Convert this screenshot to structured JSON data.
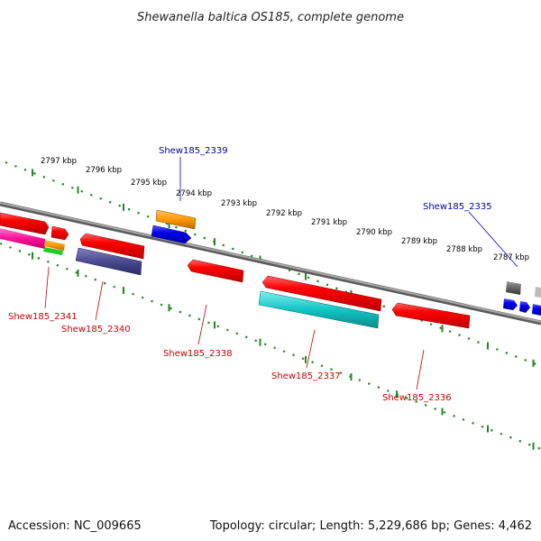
{
  "title": "Shewanella baltica OS185, complete genome",
  "footer": {
    "accession": "Accession: NC_009665",
    "summary": "Topology: circular; Length: 5,229,686 bp; Genes: 4,462"
  },
  "scale": {
    "ticks": [
      "2797 kbp",
      "2796 kbp",
      "2795 kbp",
      "2794 kbp",
      "2793 kbp",
      "2792 kbp",
      "2791 kbp",
      "2790 kbp",
      "2789 kbp",
      "2788 kbp",
      "2787 kbp"
    ]
  },
  "genes": {
    "upper": [
      {
        "name": "Shew185_2339",
        "color": "#0000aa"
      },
      {
        "name": "Shew185_2335",
        "color": "#0000aa"
      }
    ],
    "lower": [
      {
        "name": "Shew185_2341",
        "color": "#cc0000"
      },
      {
        "name": "Shew185_2340",
        "color": "#cc0000"
      },
      {
        "name": "Shew185_2338",
        "color": "#cc0000"
      },
      {
        "name": "Shew185_2337",
        "color": "#cc0000"
      },
      {
        "name": "Shew185_2336",
        "color": "#cc0000"
      }
    ]
  },
  "colors": {
    "backbone": "#888888",
    "tick_marks": "#228822",
    "forward_gene": "#ee0000",
    "reverse_gene": "#0000ee"
  }
}
